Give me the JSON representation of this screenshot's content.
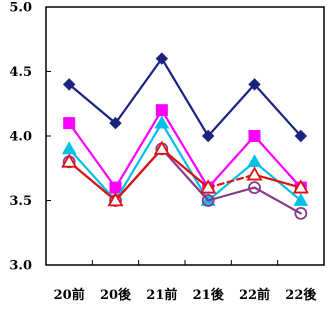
{
  "chart_data": {
    "type": "line",
    "categories": [
      "20前",
      "20後",
      "21前",
      "21後",
      "22前",
      "22後"
    ],
    "ylim": [
      3.0,
      5.0
    ],
    "yticks": [
      3.0,
      3.5,
      4.0,
      4.5,
      5.0
    ],
    "ytick_labels": [
      "3.0",
      "3.5",
      "4.0",
      "4.5",
      "5.0"
    ],
    "grid": false,
    "legend": "none",
    "series": [
      {
        "values": [
          4.4,
          4.1,
          4.6,
          4.0,
          4.4,
          4.0
        ],
        "color": "#1a237e",
        "marker": "diamond",
        "marker_fill": "#1a237e",
        "line_style": "solid"
      },
      {
        "values": [
          4.1,
          3.6,
          4.2,
          3.6,
          4.0,
          3.6
        ],
        "color": "#ff00ff",
        "marker": "square",
        "marker_fill": "#ff00ff",
        "line_style": "solid"
      },
      {
        "values": [
          3.9,
          3.5,
          4.1,
          3.5,
          3.8,
          3.5
        ],
        "color": "#00c0e8",
        "marker": "triangle",
        "marker_fill": "#00c0e8",
        "line_style": "solid"
      },
      {
        "values": [
          3.8,
          3.5,
          3.9,
          3.5,
          3.6,
          3.4
        ],
        "color": "#8b3a8b",
        "marker": "circle",
        "marker_fill": "none",
        "line_style": "solid"
      },
      {
        "values": [
          3.8,
          3.5,
          3.9,
          3.6,
          3.7,
          3.6
        ],
        "color": "#dd1111",
        "marker": "triangle",
        "marker_fill": "none",
        "line_style": "mixed",
        "dashed_segments": [
          3,
          4
        ]
      }
    ]
  }
}
